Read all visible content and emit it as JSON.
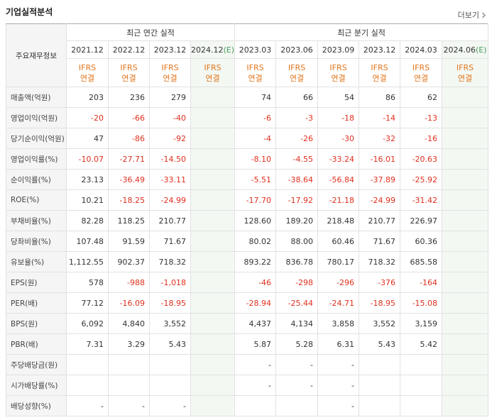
{
  "header": {
    "title": "기업실적분석",
    "more": "더보기"
  },
  "table": {
    "corner": "주요재무정보",
    "groups": [
      {
        "label": "최근 연간 실적",
        "columns": [
          {
            "period": "2021.12",
            "standard": "IFRS",
            "basis": "연결"
          },
          {
            "period": "2022.12",
            "standard": "IFRS",
            "basis": "연결"
          },
          {
            "period": "2023.12",
            "standard": "IFRS",
            "basis": "연결"
          },
          {
            "period": "2024.12",
            "estimate": "(E)",
            "standard": "IFRS",
            "basis": "연결"
          }
        ]
      },
      {
        "label": "최근 분기 실적",
        "columns": [
          {
            "period": "2023.03",
            "standard": "IFRS",
            "basis": "연결"
          },
          {
            "period": "2023.06",
            "standard": "IFRS",
            "basis": "연결"
          },
          {
            "period": "2023.09",
            "standard": "IFRS",
            "basis": "연결"
          },
          {
            "period": "2023.12",
            "standard": "IFRS",
            "basis": "연결"
          },
          {
            "period": "2024.03",
            "standard": "IFRS",
            "basis": "연결"
          },
          {
            "period": "2024.06",
            "estimate": "(E)",
            "standard": "IFRS",
            "basis": "연결"
          }
        ]
      }
    ],
    "rows": [
      {
        "label": "매출액(억원)",
        "values": [
          "203",
          "236",
          "279",
          null,
          "74",
          "66",
          "54",
          "86",
          "62",
          null
        ]
      },
      {
        "label": "영업이익(억원)",
        "values": [
          "-20",
          "-66",
          "-40",
          null,
          "-6",
          "-3",
          "-18",
          "-14",
          "-13",
          null
        ]
      },
      {
        "label": "당기순이익(억원)",
        "values": [
          "47",
          "-86",
          "-92",
          null,
          "-4",
          "-26",
          "-30",
          "-32",
          "-16",
          null
        ]
      },
      {
        "label": "영업이익률(%)",
        "values": [
          "-10.07",
          "-27.71",
          "-14.50",
          null,
          "-8.10",
          "-4.55",
          "-33.24",
          "-16.01",
          "-20.63",
          null
        ]
      },
      {
        "label": "순이익률(%)",
        "values": [
          "23.13",
          "-36.49",
          "-33.11",
          null,
          "-5.51",
          "-38.64",
          "-56.84",
          "-37.89",
          "-25.92",
          null
        ]
      },
      {
        "label": "ROE(%)",
        "values": [
          "10.21",
          "-18.25",
          "-24.99",
          null,
          "-17.70",
          "-17.92",
          "-21.18",
          "-24.99",
          "-31.42",
          null
        ]
      },
      {
        "label": "부채비율(%)",
        "values": [
          "82.28",
          "118.25",
          "210.77",
          null,
          "128.60",
          "189.20",
          "218.48",
          "210.77",
          "226.97",
          null
        ]
      },
      {
        "label": "당좌비율(%)",
        "values": [
          "107.48",
          "91.59",
          "71.67",
          null,
          "80.02",
          "88.00",
          "60.46",
          "71.67",
          "60.36",
          null
        ]
      },
      {
        "label": "유보율(%)",
        "values": [
          "1,112.55",
          "902.37",
          "718.32",
          null,
          "893.22",
          "836.78",
          "780.17",
          "718.32",
          "685.58",
          null
        ]
      },
      {
        "label": "EPS(원)",
        "values": [
          "578",
          "-988",
          "-1,018",
          null,
          "-46",
          "-298",
          "-296",
          "-376",
          "-164",
          null
        ]
      },
      {
        "label": "PER(배)",
        "values": [
          "77.12",
          "-16.09",
          "-18.95",
          null,
          "-28.94",
          "-25.44",
          "-24.71",
          "-18.95",
          "-15.08",
          null
        ]
      },
      {
        "label": "BPS(원)",
        "values": [
          "6,092",
          "4,840",
          "3,552",
          null,
          "4,437",
          "4,134",
          "3,858",
          "3,552",
          "3,159",
          null
        ]
      },
      {
        "label": "PBR(배)",
        "values": [
          "7.31",
          "3.29",
          "5.43",
          null,
          "5.87",
          "5.28",
          "6.31",
          "5.43",
          "5.42",
          null
        ]
      },
      {
        "label": "주당배당금(원)",
        "values": [
          null,
          null,
          null,
          null,
          "-",
          "-",
          "-",
          null,
          null,
          null
        ]
      },
      {
        "label": "시가배당률(%)",
        "values": [
          null,
          null,
          null,
          null,
          "-",
          "-",
          "-",
          null,
          null,
          null
        ]
      },
      {
        "label": "배당성향(%)",
        "values": [
          "-",
          "-",
          "-",
          null,
          null,
          null,
          "-",
          null,
          null,
          null
        ]
      }
    ]
  }
}
